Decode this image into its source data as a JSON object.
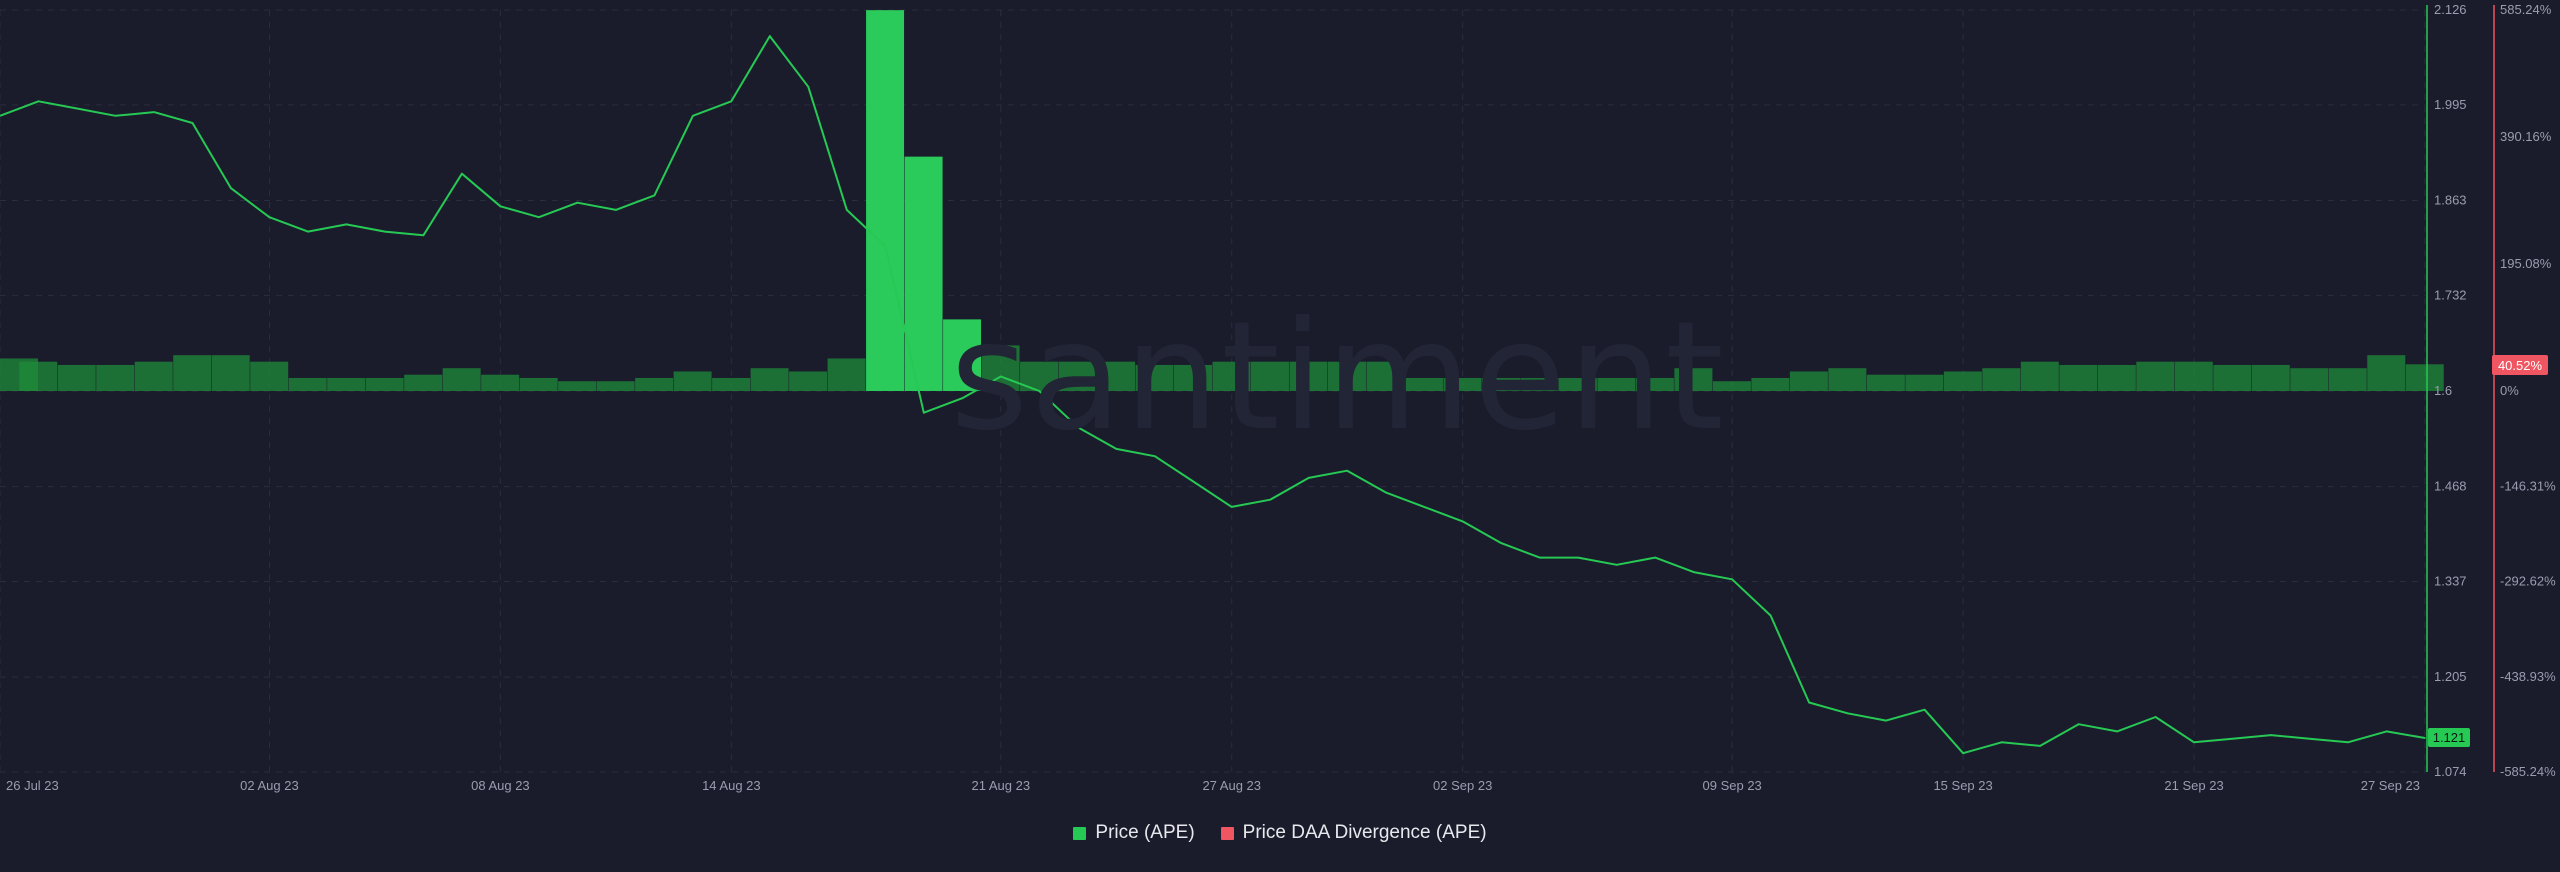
{
  "watermark": "santiment",
  "legend": [
    {
      "label": "Price (APE)",
      "color": "#26c953"
    },
    {
      "label": "Price DAA Divergence (APE)",
      "color": "#f05562"
    }
  ],
  "badges": {
    "price_now": "1.121",
    "divergence_now": "40.52%"
  },
  "chart_data": {
    "type": "line",
    "title": "",
    "x_ticks": [
      "26 Jul 23",
      "02 Aug 23",
      "08 Aug 23",
      "14 Aug 23",
      "21 Aug 23",
      "27 Aug 23",
      "02 Sep 23",
      "09 Sep 23",
      "15 Sep 23",
      "21 Sep 23",
      "27 Sep 23"
    ],
    "price_axis": {
      "ticks": [
        "2.126",
        "1.995",
        "1.863",
        "1.732",
        "1.6",
        "1.468",
        "1.337",
        "1.205",
        "1.074"
      ],
      "ylim": [
        1.074,
        2.126
      ],
      "color": "#26c953"
    },
    "divergence_axis": {
      "ticks": [
        "585.24%",
        "390.16%",
        "195.08%",
        "0%",
        "-146.31%",
        "-292.62%",
        "-438.93%",
        "-585.24%"
      ],
      "ylim": [
        -585.24,
        585.24
      ],
      "color": "#f05562"
    },
    "series": [
      {
        "name": "Price (APE)",
        "kind": "line",
        "axis": "price",
        "color": "#26c953",
        "points": [
          [
            "2023-07-26",
            1.98
          ],
          [
            "2023-07-27",
            2.0
          ],
          [
            "2023-07-28",
            1.99
          ],
          [
            "2023-07-29",
            1.98
          ],
          [
            "2023-07-30",
            1.985
          ],
          [
            "2023-07-31",
            1.97
          ],
          [
            "2023-08-01",
            1.88
          ],
          [
            "2023-08-02",
            1.84
          ],
          [
            "2023-08-03",
            1.82
          ],
          [
            "2023-08-04",
            1.83
          ],
          [
            "2023-08-05",
            1.82
          ],
          [
            "2023-08-06",
            1.815
          ],
          [
            "2023-08-07",
            1.9
          ],
          [
            "2023-08-08",
            1.855
          ],
          [
            "2023-08-09",
            1.84
          ],
          [
            "2023-08-10",
            1.86
          ],
          [
            "2023-08-11",
            1.85
          ],
          [
            "2023-08-12",
            1.87
          ],
          [
            "2023-08-13",
            1.98
          ],
          [
            "2023-08-14",
            2.0
          ],
          [
            "2023-08-15",
            2.09
          ],
          [
            "2023-08-16",
            2.02
          ],
          [
            "2023-08-17",
            1.85
          ],
          [
            "2023-08-18",
            1.8
          ],
          [
            "2023-08-19",
            1.57
          ],
          [
            "2023-08-20",
            1.59
          ],
          [
            "2023-08-21",
            1.62
          ],
          [
            "2023-08-22",
            1.6
          ],
          [
            "2023-08-23",
            1.55
          ],
          [
            "2023-08-24",
            1.52
          ],
          [
            "2023-08-25",
            1.51
          ],
          [
            "2023-08-26",
            1.475
          ],
          [
            "2023-08-27",
            1.44
          ],
          [
            "2023-08-28",
            1.45
          ],
          [
            "2023-08-29",
            1.48
          ],
          [
            "2023-08-30",
            1.49
          ],
          [
            "2023-08-31",
            1.46
          ],
          [
            "2023-09-01",
            1.44
          ],
          [
            "2023-09-02",
            1.42
          ],
          [
            "2023-09-03",
            1.39
          ],
          [
            "2023-09-04",
            1.37
          ],
          [
            "2023-09-05",
            1.37
          ],
          [
            "2023-09-06",
            1.36
          ],
          [
            "2023-09-07",
            1.37
          ],
          [
            "2023-09-08",
            1.35
          ],
          [
            "2023-09-09",
            1.34
          ],
          [
            "2023-09-10",
            1.29
          ],
          [
            "2023-09-11",
            1.17
          ],
          [
            "2023-09-12",
            1.155
          ],
          [
            "2023-09-13",
            1.145
          ],
          [
            "2023-09-14",
            1.16
          ],
          [
            "2023-09-15",
            1.1
          ],
          [
            "2023-09-16",
            1.115
          ],
          [
            "2023-09-17",
            1.11
          ],
          [
            "2023-09-18",
            1.14
          ],
          [
            "2023-09-19",
            1.13
          ],
          [
            "2023-09-20",
            1.15
          ],
          [
            "2023-09-21",
            1.115
          ],
          [
            "2023-09-22",
            1.12
          ],
          [
            "2023-09-23",
            1.125
          ],
          [
            "2023-09-24",
            1.12
          ],
          [
            "2023-09-25",
            1.115
          ],
          [
            "2023-09-26",
            1.13
          ],
          [
            "2023-09-27",
            1.121
          ]
        ]
      },
      {
        "name": "Price DAA Divergence (APE)",
        "kind": "bar",
        "axis": "divergence",
        "color": "#1f8c3a",
        "points": [
          [
            "2023-07-26",
            50
          ],
          [
            "2023-07-27",
            45
          ],
          [
            "2023-07-28",
            40
          ],
          [
            "2023-07-29",
            40
          ],
          [
            "2023-07-30",
            45
          ],
          [
            "2023-07-31",
            55
          ],
          [
            "2023-08-01",
            55
          ],
          [
            "2023-08-02",
            45
          ],
          [
            "2023-08-03",
            20
          ],
          [
            "2023-08-04",
            20
          ],
          [
            "2023-08-05",
            20
          ],
          [
            "2023-08-06",
            25
          ],
          [
            "2023-08-07",
            35
          ],
          [
            "2023-08-08",
            25
          ],
          [
            "2023-08-09",
            20
          ],
          [
            "2023-08-10",
            15
          ],
          [
            "2023-08-11",
            15
          ],
          [
            "2023-08-12",
            20
          ],
          [
            "2023-08-13",
            30
          ],
          [
            "2023-08-14",
            20
          ],
          [
            "2023-08-15",
            35
          ],
          [
            "2023-08-16",
            30
          ],
          [
            "2023-08-17",
            50
          ],
          [
            "2023-08-18",
            585
          ],
          [
            "2023-08-19",
            360
          ],
          [
            "2023-08-20",
            110
          ],
          [
            "2023-08-21",
            70
          ],
          [
            "2023-08-22",
            45
          ],
          [
            "2023-08-23",
            45
          ],
          [
            "2023-08-24",
            45
          ],
          [
            "2023-08-25",
            40
          ],
          [
            "2023-08-26",
            40
          ],
          [
            "2023-08-27",
            45
          ],
          [
            "2023-08-28",
            45
          ],
          [
            "2023-08-29",
            45
          ],
          [
            "2023-08-30",
            45
          ],
          [
            "2023-08-31",
            45
          ],
          [
            "2023-09-01",
            20
          ],
          [
            "2023-09-02",
            20
          ],
          [
            "2023-09-03",
            20
          ],
          [
            "2023-09-04",
            20
          ],
          [
            "2023-09-05",
            20
          ],
          [
            "2023-09-06",
            20
          ],
          [
            "2023-09-07",
            20
          ],
          [
            "2023-09-08",
            35
          ],
          [
            "2023-09-09",
            15
          ],
          [
            "2023-09-10",
            20
          ],
          [
            "2023-09-11",
            30
          ],
          [
            "2023-09-12",
            35
          ],
          [
            "2023-09-13",
            25
          ],
          [
            "2023-09-14",
            25
          ],
          [
            "2023-09-15",
            30
          ],
          [
            "2023-09-16",
            35
          ],
          [
            "2023-09-17",
            45
          ],
          [
            "2023-09-18",
            40
          ],
          [
            "2023-09-19",
            40
          ],
          [
            "2023-09-20",
            45
          ],
          [
            "2023-09-21",
            45
          ],
          [
            "2023-09-22",
            40
          ],
          [
            "2023-09-23",
            40
          ],
          [
            "2023-09-24",
            35
          ],
          [
            "2023-09-25",
            35
          ],
          [
            "2023-09-26",
            55
          ],
          [
            "2023-09-27",
            41
          ]
        ]
      }
    ],
    "grid": true,
    "legend_position": "bottom-center"
  }
}
